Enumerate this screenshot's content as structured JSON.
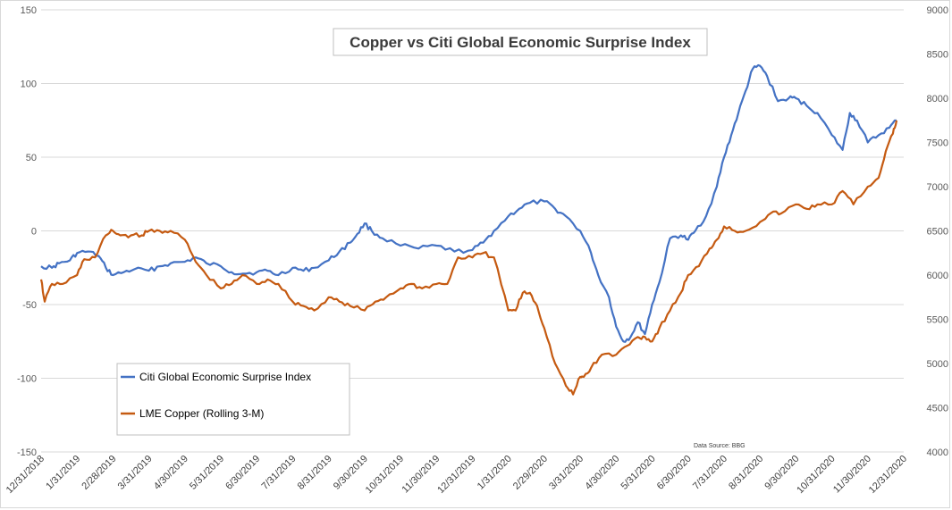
{
  "chart_data": {
    "type": "line",
    "title": "Copper vs Citi Global Economic Surprise Index",
    "source": "Data Source: BBG",
    "ylim_left": [
      -150,
      150
    ],
    "yticks_left": [
      "150",
      "100",
      "50",
      "0",
      "-50",
      "-100",
      "-150"
    ],
    "ylim_right": [
      4000,
      9000
    ],
    "yticks_right": [
      "9000",
      "8500",
      "8000",
      "7500",
      "7000",
      "6500",
      "6000",
      "5500",
      "5000",
      "4500",
      "4000"
    ],
    "x_labels": [
      "12/31/2018",
      "1/31/2019",
      "2/28/2019",
      "3/31/2019",
      "4/30/2019",
      "5/31/2019",
      "6/30/2019",
      "7/31/2019",
      "8/31/2019",
      "9/30/2019",
      "10/31/2019",
      "11/30/2019",
      "12/31/2019",
      "1/31/2020",
      "2/29/2020",
      "3/31/2020",
      "4/30/2020",
      "5/31/2020",
      "6/30/2020",
      "7/31/2020",
      "8/31/2020",
      "9/30/2020",
      "10/31/2020",
      "11/30/2020",
      "12/31/2020"
    ],
    "grid": true,
    "legend_position": "bottom-left",
    "series": [
      {
        "name": "Citi Global Economic Surprise Index",
        "axis": "left",
        "color": "#4472c4",
        "x": [
          0,
          0.3,
          0.5,
          0.8,
          1.0,
          1.3,
          1.6,
          1.8,
          2.0,
          2.3,
          2.6,
          3.0,
          3.3,
          3.6,
          4.0,
          4.3,
          4.6,
          5.0,
          5.3,
          5.6,
          6.0,
          6.3,
          6.6,
          7.0,
          7.3,
          7.6,
          8.0,
          8.3,
          8.6,
          8.8,
          9.0,
          9.2,
          9.5,
          10.0,
          10.5,
          11.0,
          11.5,
          12.0,
          12.3,
          12.6,
          13.0,
          13.3,
          13.6,
          14.0,
          14.3,
          14.6,
          15.0,
          15.3,
          15.5,
          15.8,
          16.0,
          16.2,
          16.4,
          16.6,
          16.8,
          17.0,
          17.2,
          17.5,
          17.8,
          18.0,
          18.2,
          18.5,
          18.8,
          19.0,
          19.2,
          19.4,
          19.6,
          19.8,
          20.0,
          20.2,
          20.5,
          20.8,
          21.0,
          21.3,
          21.6,
          22.0,
          22.3,
          22.5,
          22.7,
          23.0,
          23.3,
          23.6,
          23.8
        ],
        "y": [
          -24,
          -25,
          -22,
          -20,
          -15,
          -14,
          -17,
          -25,
          -30,
          -28,
          -26,
          -27,
          -24,
          -22,
          -21,
          -18,
          -22,
          -24,
          -28,
          -29,
          -28,
          -27,
          -30,
          -25,
          -27,
          -25,
          -20,
          -14,
          -8,
          -2,
          5,
          0,
          -5,
          -10,
          -12,
          -10,
          -14,
          -13,
          -8,
          0,
          10,
          15,
          19,
          20,
          15,
          10,
          0,
          -15,
          -30,
          -45,
          -65,
          -75,
          -72,
          -62,
          -70,
          -50,
          -35,
          -5,
          -3,
          -6,
          0,
          10,
          30,
          50,
          65,
          80,
          95,
          110,
          112,
          105,
          88,
          90,
          90,
          85,
          80,
          65,
          55,
          80,
          75,
          60,
          65,
          70,
          75
        ]
      },
      {
        "name": "LME Copper (Rolling 3-M)",
        "axis": "right",
        "color": "#c55a11",
        "x": [
          0,
          0.1,
          0.3,
          0.6,
          1.0,
          1.2,
          1.5,
          1.8,
          2.0,
          2.2,
          2.5,
          2.8,
          3.0,
          3.3,
          3.6,
          4.0,
          4.3,
          4.6,
          5.0,
          5.3,
          5.6,
          6.0,
          6.3,
          6.6,
          7.0,
          7.3,
          7.6,
          8.0,
          8.3,
          8.6,
          9.0,
          9.3,
          9.6,
          10.0,
          10.3,
          10.6,
          11.0,
          11.3,
          11.6,
          12.0,
          12.3,
          12.6,
          13.0,
          13.2,
          13.4,
          13.6,
          13.8,
          14.0,
          14.3,
          14.6,
          14.8,
          15.0,
          15.1,
          15.3,
          15.6,
          16.0,
          16.3,
          16.6,
          16.8,
          17.0,
          17.2,
          17.5,
          17.8,
          18.0,
          18.3,
          18.6,
          18.8,
          19.0,
          19.3,
          19.6,
          20.0,
          20.3,
          20.6,
          21.0,
          21.3,
          21.6,
          22.0,
          22.3,
          22.6,
          23.0,
          23.3,
          23.5,
          23.7,
          23.8
        ],
        "y": [
          5950,
          5700,
          5900,
          5900,
          6000,
          6180,
          6200,
          6450,
          6500,
          6450,
          6450,
          6450,
          6500,
          6500,
          6500,
          6400,
          6150,
          6000,
          5850,
          5900,
          6000,
          5900,
          5950,
          5900,
          5700,
          5650,
          5600,
          5750,
          5700,
          5650,
          5600,
          5700,
          5750,
          5850,
          5900,
          5850,
          5900,
          5900,
          6200,
          6200,
          6250,
          6200,
          5600,
          5600,
          5800,
          5800,
          5650,
          5400,
          5000,
          4750,
          4650,
          4850,
          4850,
          4950,
          5100,
          5100,
          5200,
          5300,
          5300,
          5250,
          5400,
          5600,
          5800,
          6000,
          6100,
          6300,
          6400,
          6550,
          6500,
          6500,
          6600,
          6700,
          6700,
          6800,
          6750,
          6800,
          6800,
          6950,
          6800,
          7000,
          7100,
          7400,
          7600,
          7750
        ]
      }
    ]
  }
}
